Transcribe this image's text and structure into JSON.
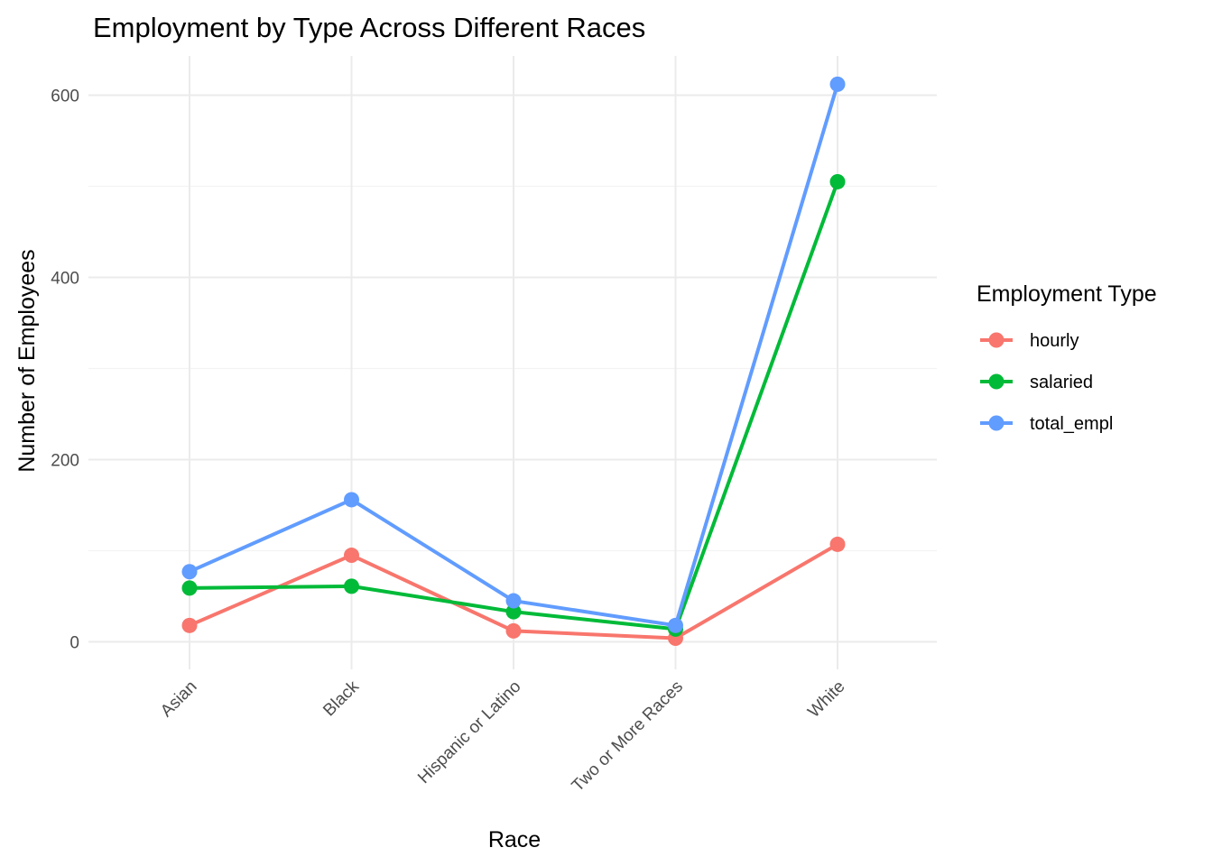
{
  "chart_data": {
    "type": "line",
    "title": "Employment by Type Across Different Races",
    "xlabel": "Race",
    "ylabel": "Number of Employees",
    "categories": [
      "Asian",
      "Black",
      "Hispanic or Latino",
      "Two or More Races",
      "White"
    ],
    "series": [
      {
        "name": "hourly",
        "color": "#F8766D",
        "values": [
          18,
          95,
          12,
          4,
          107
        ]
      },
      {
        "name": "salaried",
        "color": "#00BA38",
        "values": [
          59,
          61,
          33,
          14,
          505
        ]
      },
      {
        "name": "total_empl",
        "color": "#619CFF",
        "values": [
          77,
          156,
          45,
          18,
          612
        ]
      }
    ],
    "ylim": [
      -30,
      640
    ],
    "y_ticks": [
      0,
      200,
      400,
      600
    ],
    "y_minor_ticks": [
      100,
      300,
      500
    ],
    "grid": true,
    "legend": {
      "title": "Employment Type",
      "position": "right"
    }
  }
}
